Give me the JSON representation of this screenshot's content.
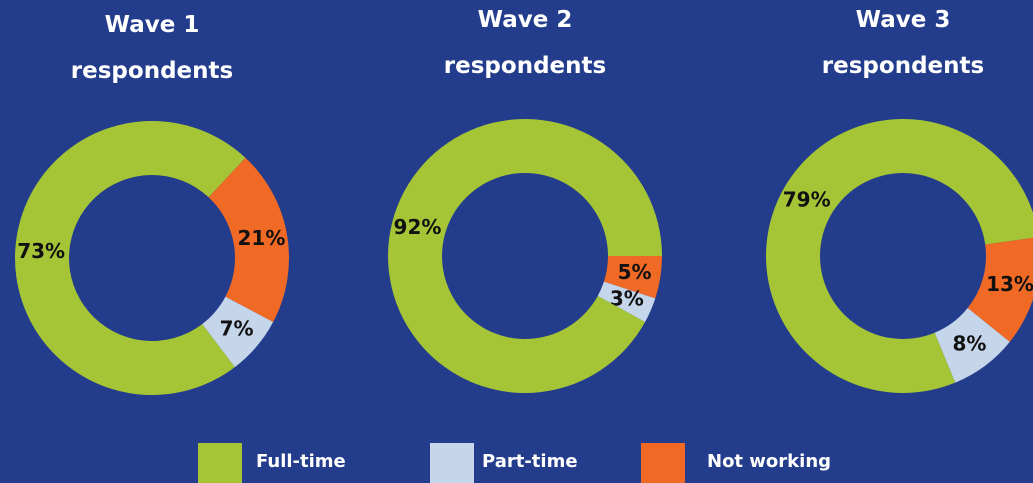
{
  "chart_data": [
    {
      "type": "pie",
      "title": "Wave 1 respondents",
      "categories": [
        "Full-time",
        "Part-time",
        "Not working"
      ],
      "values": [
        73,
        7,
        21
      ],
      "value_labels": [
        "73%",
        "7%",
        "21%"
      ],
      "colors": [
        "#a5c536",
        "#c5d5ea",
        "#f06a25"
      ]
    },
    {
      "type": "pie",
      "title": "Wave 2 respondents",
      "categories": [
        "Full-time",
        "Part-time",
        "Not working"
      ],
      "values": [
        92,
        3,
        5
      ],
      "value_labels": [
        "92%",
        "3%",
        "5%"
      ],
      "colors": [
        "#a5c536",
        "#c5d5ea",
        "#f06a25"
      ]
    },
    {
      "type": "pie",
      "title": "Wave 3 respondents",
      "categories": [
        "Full-time",
        "Part-time",
        "Not working"
      ],
      "values": [
        79,
        8,
        13
      ],
      "value_labels": [
        "79%",
        "8%",
        "13%"
      ],
      "colors": [
        "#a5c536",
        "#c5d5ea",
        "#f06a25"
      ]
    }
  ]
}
